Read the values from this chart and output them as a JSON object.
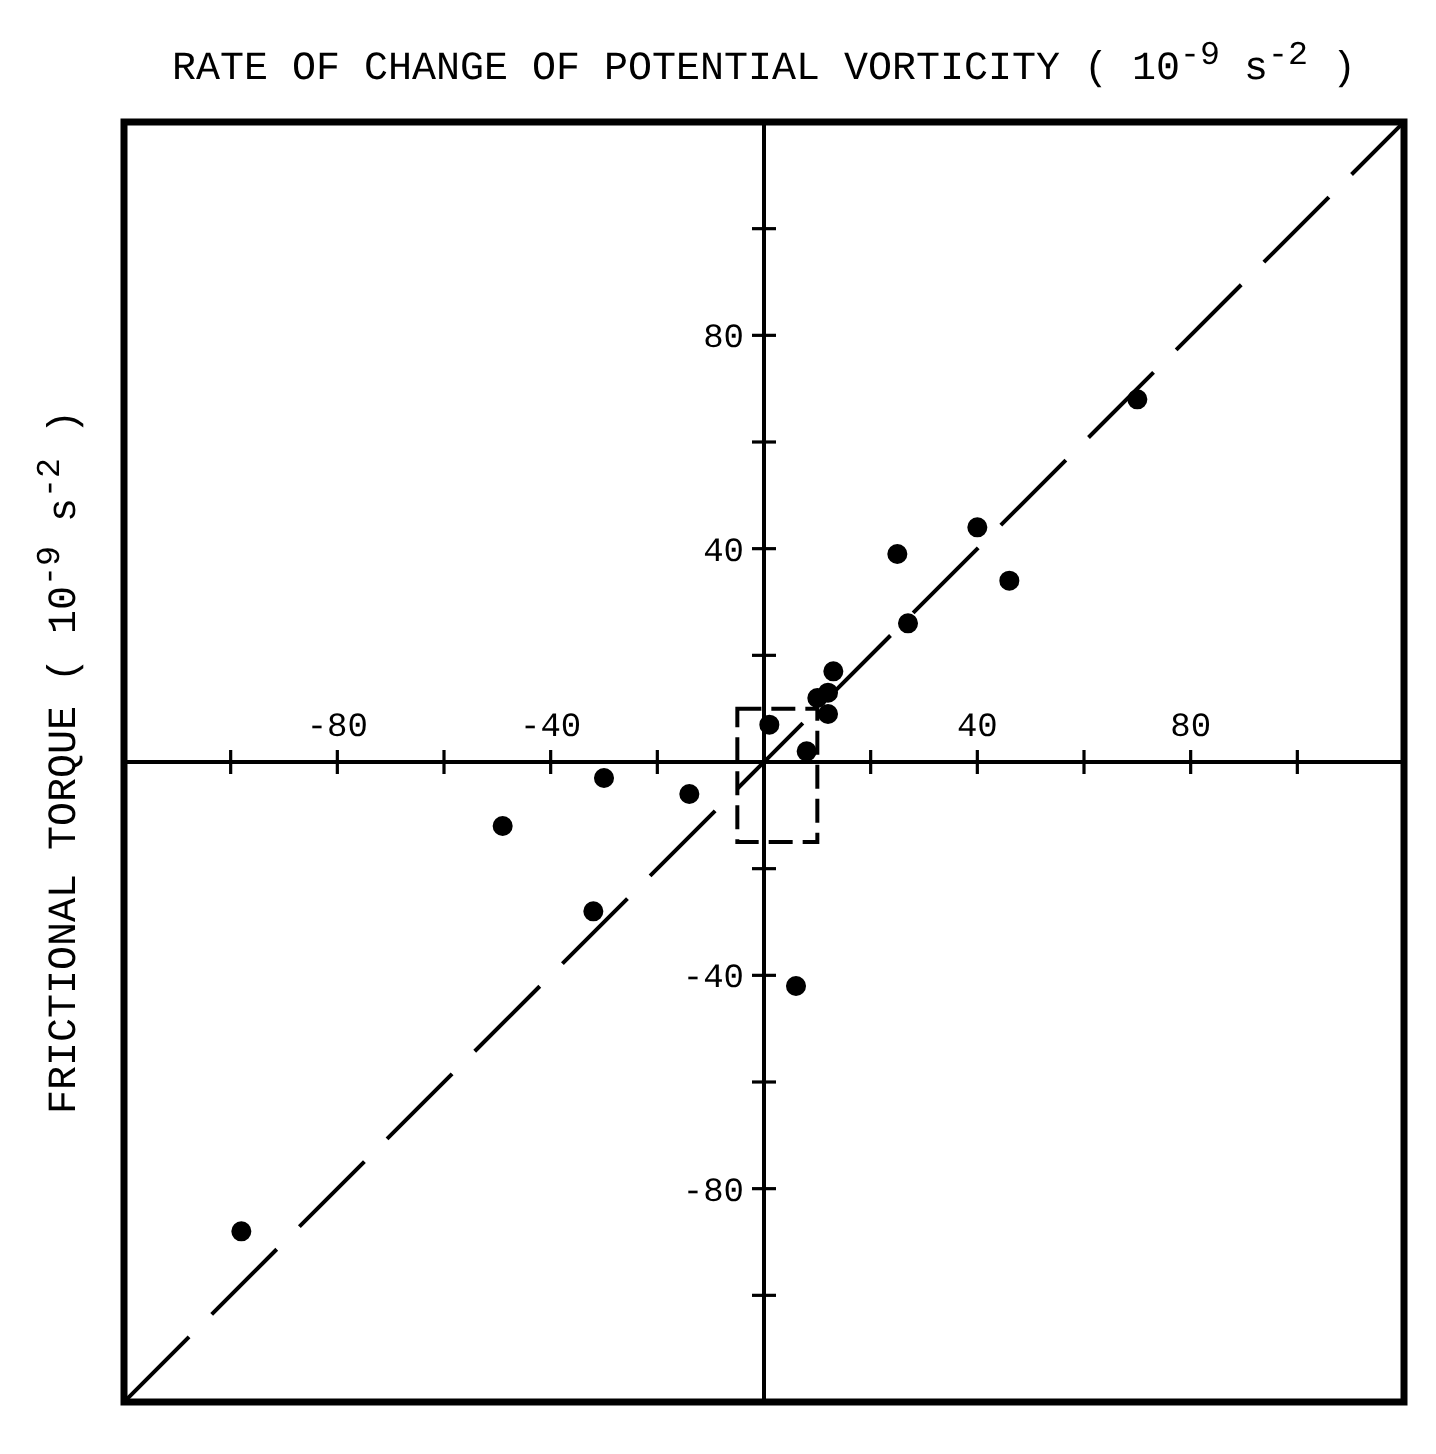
{
  "chart_data": {
    "type": "scatter",
    "xlabel": "RATE OF CHANGE OF POTENTIAL VORTICITY ( 10$^{-9}$ s$^{-2}$ )",
    "ylabel": "FRICTIONAL TORQUE ( 10$^{-9}$ s$^{-2}$ )",
    "xlim": [
      -120,
      120
    ],
    "ylim": [
      -120,
      120
    ],
    "xticks": [
      {
        "value": -100,
        "label": null
      },
      -80,
      {
        "value": -60,
        "label": null
      },
      -40,
      {
        "value": -20,
        "label": null
      },
      {
        "value": 20,
        "label": null
      },
      40,
      {
        "value": 60,
        "label": null
      },
      80,
      {
        "value": 100,
        "label": null
      }
    ],
    "yticks": [
      {
        "value": -100,
        "label": null
      },
      -80,
      {
        "value": -60,
        "label": null
      },
      -40,
      {
        "value": -20,
        "label": null
      },
      {
        "value": 20,
        "label": null
      },
      40,
      {
        "value": 60,
        "label": null
      },
      80,
      {
        "value": 100,
        "label": null
      }
    ],
    "marker": "circle",
    "series": [
      {
        "type": "scatter",
        "color": "#000000",
        "x": [
          -98,
          -49,
          -32,
          -30,
          -14,
          1,
          8,
          6,
          10,
          12,
          12,
          13,
          25,
          27,
          40,
          46,
          70
        ],
        "values": [
          -88,
          -12,
          -28,
          -3,
          -6,
          7,
          2,
          -42,
          12,
          13,
          9,
          17,
          39,
          26,
          44,
          34,
          68
        ]
      },
      {
        "type": "line",
        "color": "#000000",
        "marker": "none",
        "line_style": "dashed",
        "x": [
          -120,
          120
        ],
        "values": [
          -120,
          120
        ]
      }
    ]
  }
}
